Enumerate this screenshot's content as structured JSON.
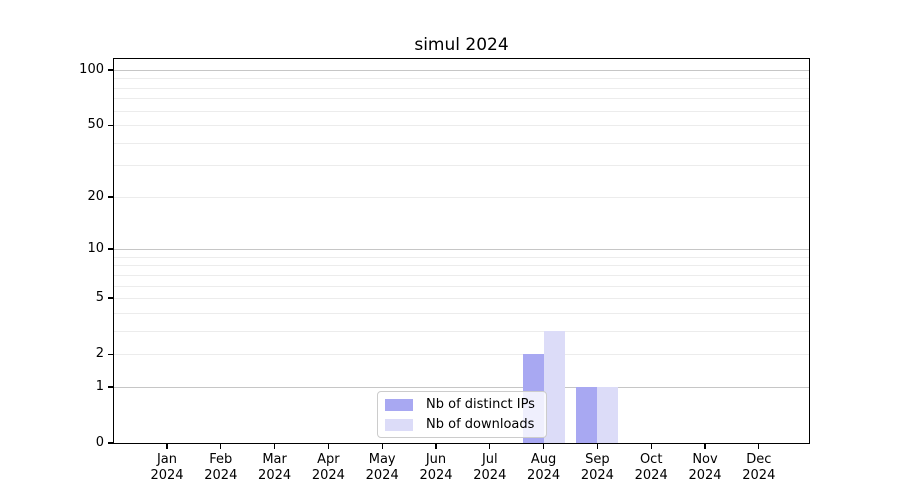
{
  "title": "simul 2024",
  "colors": {
    "ips_bar": "#a8a8f2",
    "downloads_bar": "#dcdcf8",
    "grid_major": "#c6c6c6",
    "grid_minor": "#ececec",
    "axis": "#000000",
    "text": "#000000",
    "background": "#ffffff",
    "legend_border": "#cccccc"
  },
  "chart_data": {
    "type": "bar",
    "title": "simul 2024",
    "categories": [
      "Jan 2024",
      "Feb 2024",
      "Mar 2024",
      "Apr 2024",
      "May 2024",
      "Jun 2024",
      "Jul 2024",
      "Aug 2024",
      "Sep 2024",
      "Oct 2024",
      "Nov 2024",
      "Dec 2024"
    ],
    "series": [
      {
        "name": "Nb of distinct IPs",
        "color_key": "ips_bar",
        "values": [
          0,
          0,
          0,
          0,
          0,
          0,
          0,
          2,
          1,
          0,
          0,
          0
        ]
      },
      {
        "name": "Nb of downloads",
        "color_key": "downloads_bar",
        "values": [
          0,
          0,
          0,
          0,
          0,
          0,
          0,
          3,
          1,
          0,
          0,
          0
        ]
      }
    ],
    "xlabel": "",
    "ylabel": "",
    "y_scale": "log1p",
    "ylim": [
      0,
      115
    ],
    "y_ticks": [
      0,
      1,
      2,
      5,
      10,
      20,
      50,
      100
    ],
    "y_gridlines_major": [
      1,
      10,
      100
    ],
    "y_gridlines_minor": [
      2,
      3,
      4,
      5,
      6,
      7,
      8,
      9,
      20,
      30,
      40,
      50,
      60,
      70,
      80,
      90
    ],
    "grid": true,
    "legend_position": "lower center inside plot",
    "bar_group": "paired side-by-side, centered on month tick"
  }
}
